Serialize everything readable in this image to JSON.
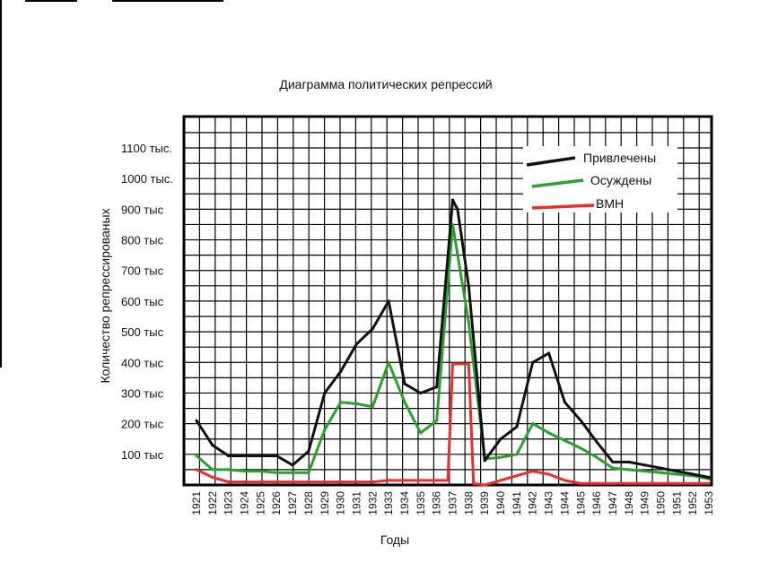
{
  "colors": {
    "background": "#ffffff",
    "grid": "#000000",
    "privlecheny": "#111111",
    "osuzhdeny": "#2ca02c",
    "vmn": "#e53030"
  },
  "chart_data": {
    "type": "line",
    "title": "Диаграмма политических репрессий",
    "xlabel": "Годы",
    "ylabel": "Количество репрессированых",
    "ylim": [
      0,
      1100000
    ],
    "grid": true,
    "legend_position": "top-right",
    "y_tick_labels": [
      {
        "value": 100000,
        "label": "100 тыс"
      },
      {
        "value": 200000,
        "label": "200 тыс"
      },
      {
        "value": 300000,
        "label": "300 тыс"
      },
      {
        "value": 400000,
        "label": "400 тыс"
      },
      {
        "value": 500000,
        "label": "500 тыс"
      },
      {
        "value": 600000,
        "label": "600 тыс"
      },
      {
        "value": 700000,
        "label": "700 тыс"
      },
      {
        "value": 800000,
        "label": "800 тыс"
      },
      {
        "value": 900000,
        "label": "900 тыс"
      },
      {
        "value": 1000000,
        "label": "1000 тыс."
      },
      {
        "value": 1100000,
        "label": "1100 тыс."
      }
    ],
    "categories": [
      "1921",
      "1922",
      "1923",
      "1924",
      "1925",
      "1926",
      "1927",
      "1928",
      "1929",
      "1930",
      "1931",
      "1932",
      "1933",
      "1934",
      "1935",
      "1936",
      "1937",
      "1938",
      "1939",
      "1940",
      "1941",
      "1942",
      "1943",
      "1944",
      "1945",
      "1946",
      "1947",
      "1948",
      "1949",
      "1950",
      "1951",
      "1952",
      "1953"
    ],
    "series": [
      {
        "name": "Привлечены",
        "color": "#111111",
        "points": [
          [
            1921,
            210000
          ],
          [
            1922,
            130000
          ],
          [
            1923,
            95000
          ],
          [
            1924,
            95000
          ],
          [
            1925,
            95000
          ],
          [
            1926,
            95000
          ],
          [
            1927,
            65000
          ],
          [
            1928,
            110000
          ],
          [
            1929,
            300000
          ],
          [
            1930,
            370000
          ],
          [
            1931,
            460000
          ],
          [
            1932,
            510000
          ],
          [
            1933,
            600000
          ],
          [
            1934,
            330000
          ],
          [
            1935,
            300000
          ],
          [
            1936,
            320000
          ],
          [
            1937,
            930000
          ],
          [
            1937.3,
            900000
          ],
          [
            1938,
            650000
          ],
          [
            1939,
            80000
          ],
          [
            1940,
            150000
          ],
          [
            1941,
            190000
          ],
          [
            1942,
            400000
          ],
          [
            1943,
            430000
          ],
          [
            1944,
            270000
          ],
          [
            1945,
            210000
          ],
          [
            1946,
            140000
          ],
          [
            1947,
            75000
          ],
          [
            1948,
            75000
          ],
          [
            1949,
            65000
          ],
          [
            1950,
            55000
          ],
          [
            1951,
            45000
          ],
          [
            1952,
            35000
          ],
          [
            1953,
            25000
          ]
        ]
      },
      {
        "name": "Осуждены",
        "color": "#2ca02c",
        "points": [
          [
            1921,
            95000
          ],
          [
            1922,
            50000
          ],
          [
            1923,
            50000
          ],
          [
            1924,
            45000
          ],
          [
            1925,
            45000
          ],
          [
            1926,
            40000
          ],
          [
            1927,
            40000
          ],
          [
            1928,
            40000
          ],
          [
            1929,
            180000
          ],
          [
            1930,
            270000
          ],
          [
            1931,
            265000
          ],
          [
            1932,
            255000
          ],
          [
            1933,
            400000
          ],
          [
            1934,
            270000
          ],
          [
            1935,
            170000
          ],
          [
            1936,
            210000
          ],
          [
            1937,
            850000
          ],
          [
            1938,
            530000
          ],
          [
            1939,
            85000
          ],
          [
            1940,
            90000
          ],
          [
            1941,
            100000
          ],
          [
            1942,
            200000
          ],
          [
            1943,
            170000
          ],
          [
            1944,
            145000
          ],
          [
            1945,
            120000
          ],
          [
            1946,
            90000
          ],
          [
            1947,
            55000
          ],
          [
            1948,
            50000
          ],
          [
            1949,
            45000
          ],
          [
            1950,
            40000
          ],
          [
            1951,
            35000
          ],
          [
            1952,
            30000
          ],
          [
            1953,
            20000
          ]
        ]
      },
      {
        "name": "ВМН",
        "color": "#e53030",
        "points": [
          [
            1921,
            50000
          ],
          [
            1922,
            25000
          ],
          [
            1923,
            10000
          ],
          [
            1924,
            10000
          ],
          [
            1925,
            10000
          ],
          [
            1926,
            10000
          ],
          [
            1927,
            10000
          ],
          [
            1928,
            10000
          ],
          [
            1929,
            10000
          ],
          [
            1930,
            10000
          ],
          [
            1931,
            10000
          ],
          [
            1932,
            10000
          ],
          [
            1933,
            15000
          ],
          [
            1934,
            15000
          ],
          [
            1935,
            15000
          ],
          [
            1936,
            15000
          ],
          [
            1936.7,
            15000
          ],
          [
            1937,
            395000
          ],
          [
            1938,
            395000
          ],
          [
            1938.3,
            5000
          ],
          [
            1939,
            0
          ],
          [
            1940,
            15000
          ],
          [
            1941,
            30000
          ],
          [
            1942,
            45000
          ],
          [
            1943,
            35000
          ],
          [
            1944,
            15000
          ],
          [
            1945,
            5000
          ],
          [
            1946,
            5000
          ],
          [
            1947,
            5000
          ],
          [
            1948,
            5000
          ],
          [
            1949,
            5000
          ],
          [
            1950,
            5000
          ],
          [
            1951,
            5000
          ],
          [
            1952,
            5000
          ],
          [
            1953,
            5000
          ]
        ]
      }
    ]
  }
}
